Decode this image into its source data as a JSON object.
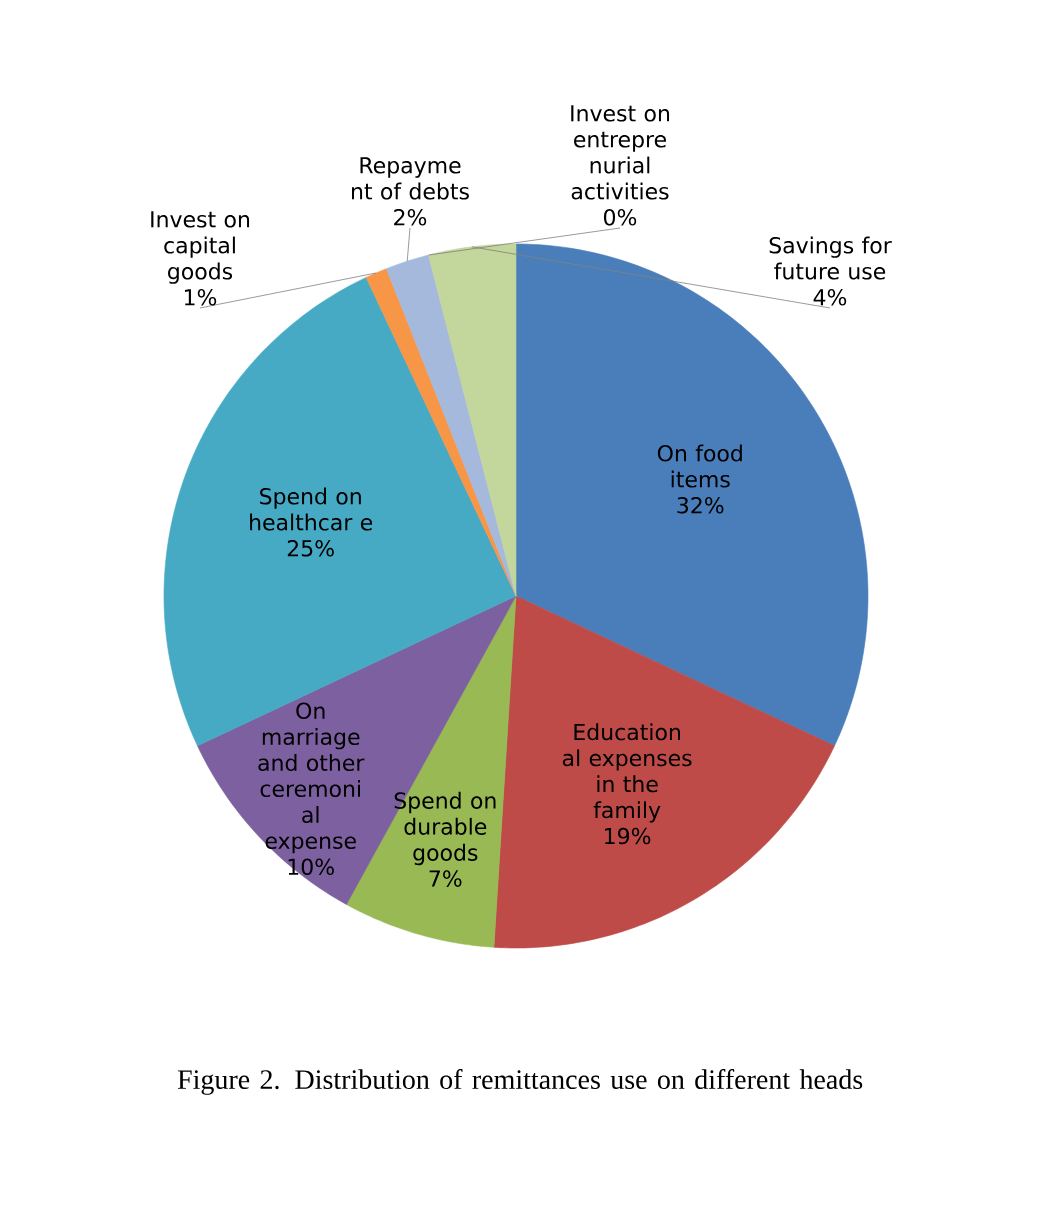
{
  "chart_data": {
    "type": "pie",
    "title": "Figure 2. Distribution of remittances use on different heads",
    "categories": [
      "On food items",
      "Education al expenses in the family",
      "Spend on durable goods",
      "On marriage and other ceremoni al expense",
      "Spend on healthcar e",
      "Invest on capital goods",
      "Repayme nt of debts",
      "Invest on entrepre nurial activities",
      "Savings for future use"
    ],
    "values": [
      32,
      19,
      7,
      10,
      25,
      1,
      2,
      0,
      4
    ],
    "value_labels": [
      "32%",
      "19%",
      "7%",
      "10%",
      "25%",
      "1%",
      "2%",
      "0%",
      "4%"
    ],
    "colors": [
      "#4a7ebb",
      "#be4b48",
      "#98b954",
      "#7d60a0",
      "#46aac5",
      "#f79646",
      "#a5b9dc",
      "#e6a0a0",
      "#c3d69b"
    ]
  }
}
